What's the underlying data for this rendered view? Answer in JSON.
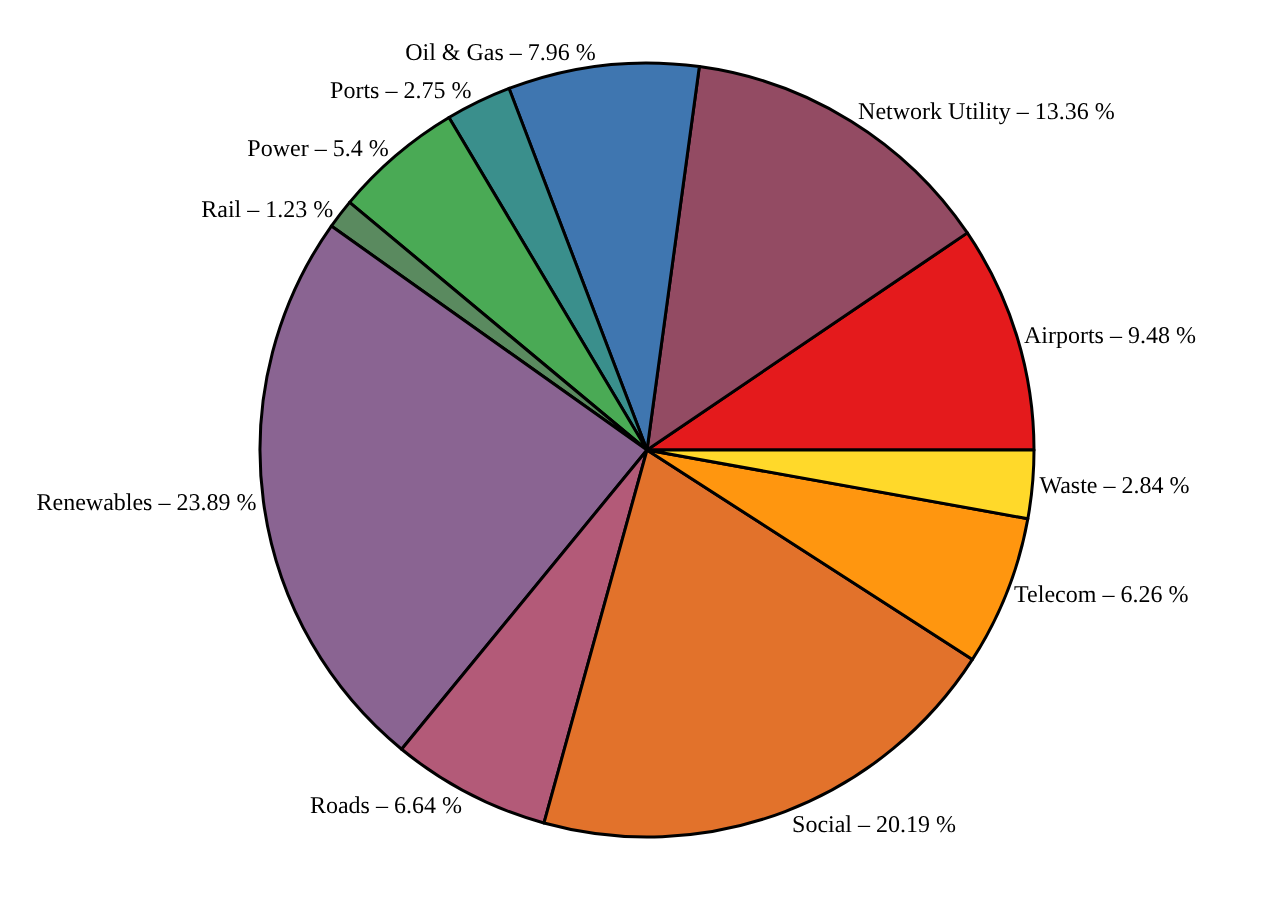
{
  "chart_data": {
    "type": "pie",
    "categories": [
      "Airports",
      "Network Utility",
      "Oil & Gas",
      "Ports",
      "Power",
      "Rail",
      "Renewables",
      "Roads",
      "Social",
      "Telecom",
      "Waste"
    ],
    "values": [
      9.48,
      13.36,
      7.96,
      2.75,
      5.4,
      1.23,
      23.89,
      6.64,
      20.19,
      6.26,
      2.84
    ],
    "colors": [
      "#e41a1c",
      "#934b63",
      "#3f76b0",
      "#3a8f8c",
      "#4aaa55",
      "#5a8a5f",
      "#8a6492",
      "#b35a78",
      "#e2722b",
      "#ff960f",
      "#ffd92a"
    ],
    "value_labels": [
      "9.48 %",
      "13.36 %",
      "7.96 %",
      "2.75 %",
      "5.4 %",
      "1.23 %",
      "23.89 %",
      "6.64 %",
      "20.19 %",
      "6.26 %",
      "2.84 %"
    ],
    "legend": false
  }
}
